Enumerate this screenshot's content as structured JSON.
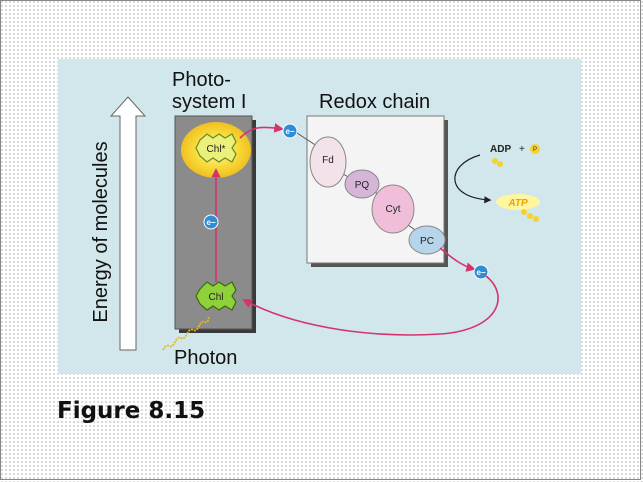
{
  "labels": {
    "photosystem_line1": "Photo-",
    "photosystem_line2": "system I",
    "redox_chain": "Redox chain",
    "energy_axis": "Energy of  molecules",
    "photon": "Photon",
    "chl_excited": "Chl*",
    "chl": "Chl",
    "electron": "e−",
    "adp": "ADP",
    "plus": "+",
    "pi": "P",
    "atp": "ATP"
  },
  "carriers": [
    {
      "name": "Fd",
      "color": "#f3e2ea"
    },
    {
      "name": "PQ",
      "color": "#d6b6d8"
    },
    {
      "name": "Cyt",
      "color": "#f0bed8"
    },
    {
      "name": "PC",
      "color": "#b6d4ea"
    }
  ],
  "caption": "Figure 8.15",
  "colors": {
    "panel": "#d1e7ec",
    "photosystem_box": "#8b8b8b",
    "redox_box": "#f4f4f4",
    "arrow": "#d6336c",
    "electron": "#2e8dd4",
    "chl_green": "#8fd13a",
    "glow": "#f7d22e"
  }
}
